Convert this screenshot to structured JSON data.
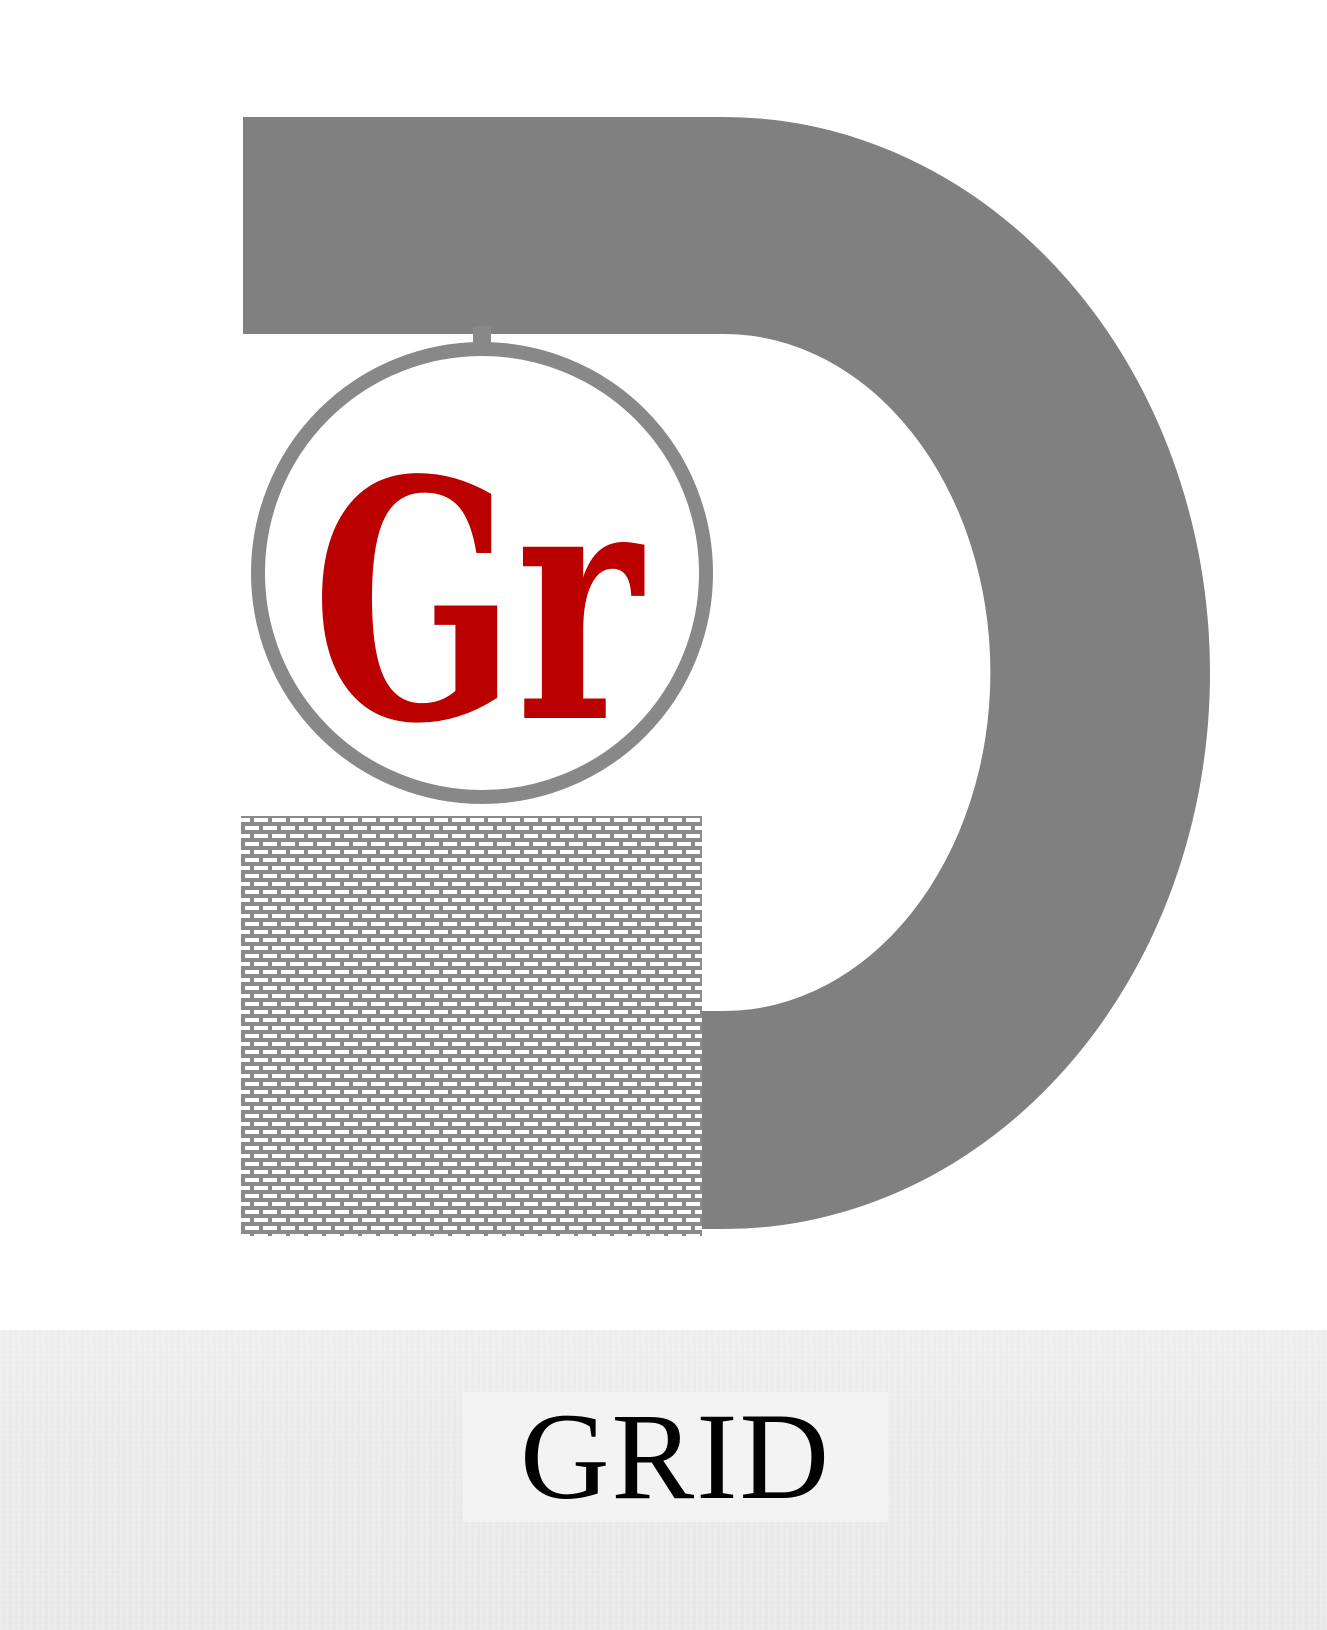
{
  "logo": {
    "emblem_letters": "Gr",
    "icons": [
      "d-arc-shape",
      "ring-icon",
      "brick-pattern"
    ]
  },
  "footer": {
    "brand_name": "GRID"
  },
  "colors": {
    "background": "#ffffff",
    "d_shape_gray": "#808080",
    "ring_gray": "#888888",
    "emblem_red": "#bb0000",
    "footer_band": "#ececec",
    "text_black": "#000000"
  }
}
